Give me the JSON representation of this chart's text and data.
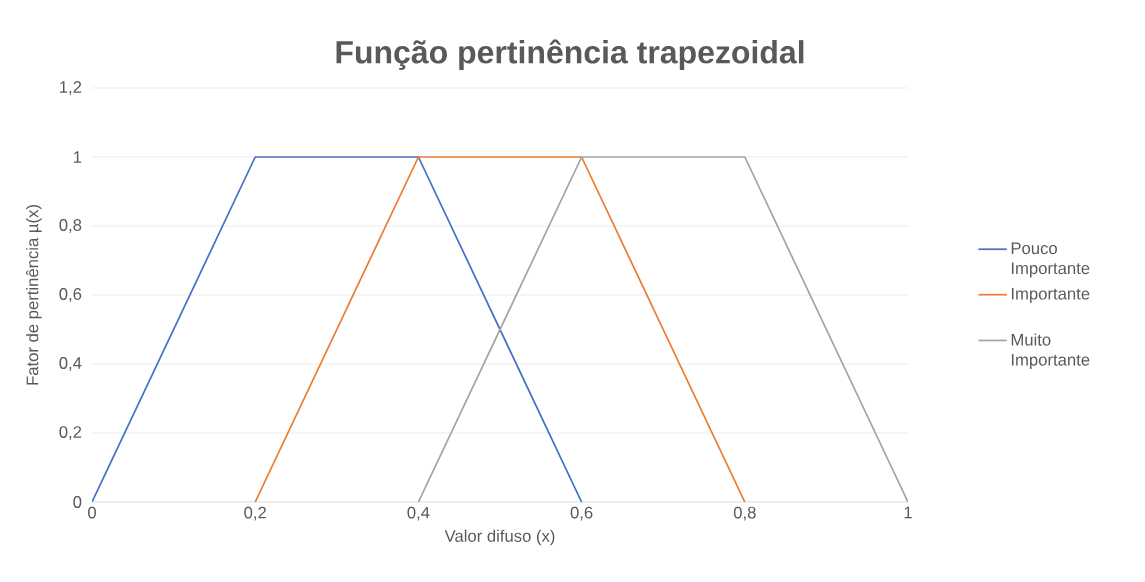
{
  "chart_data": {
    "type": "line",
    "title": "Função pertinência trapezoidal",
    "xlabel": "Valor difuso (x)",
    "ylabel": "Fator de pertinência µ(x)",
    "series": [
      {
        "name": "Pouco Importante",
        "color": "#4472c4",
        "x": [
          0,
          0.2,
          0.4,
          0.6
        ],
        "values": [
          0,
          1,
          1,
          0
        ]
      },
      {
        "name": "Importante",
        "color": "#ed7d31",
        "x": [
          0.2,
          0.4,
          0.6,
          0.8
        ],
        "values": [
          0,
          1,
          1,
          0
        ]
      },
      {
        "name": "Muito Importante",
        "color": "#a5a5a5",
        "x": [
          0.4,
          0.6,
          0.8,
          1
        ],
        "values": [
          0,
          1,
          1,
          0
        ]
      }
    ],
    "xlim": [
      0,
      1
    ],
    "ylim": [
      0,
      1.2
    ],
    "xticks": [
      0,
      {
        "value": 0.2,
        "label": "0,2"
      },
      {
        "value": 0.4,
        "label": "0,4"
      },
      {
        "value": 0.6,
        "label": "0,6"
      },
      {
        "value": 0.8,
        "label": "0,8"
      },
      1
    ],
    "yticks": [
      0,
      {
        "value": 0.2,
        "label": "0,2"
      },
      {
        "value": 0.4,
        "label": "0,4"
      },
      {
        "value": 0.6,
        "label": "0,6"
      },
      {
        "value": 0.8,
        "label": "0,8"
      },
      1,
      {
        "value": 1.2,
        "label": "1,2"
      }
    ],
    "grid": "y",
    "legend": "right",
    "marker": "none",
    "line_style": "solid"
  }
}
